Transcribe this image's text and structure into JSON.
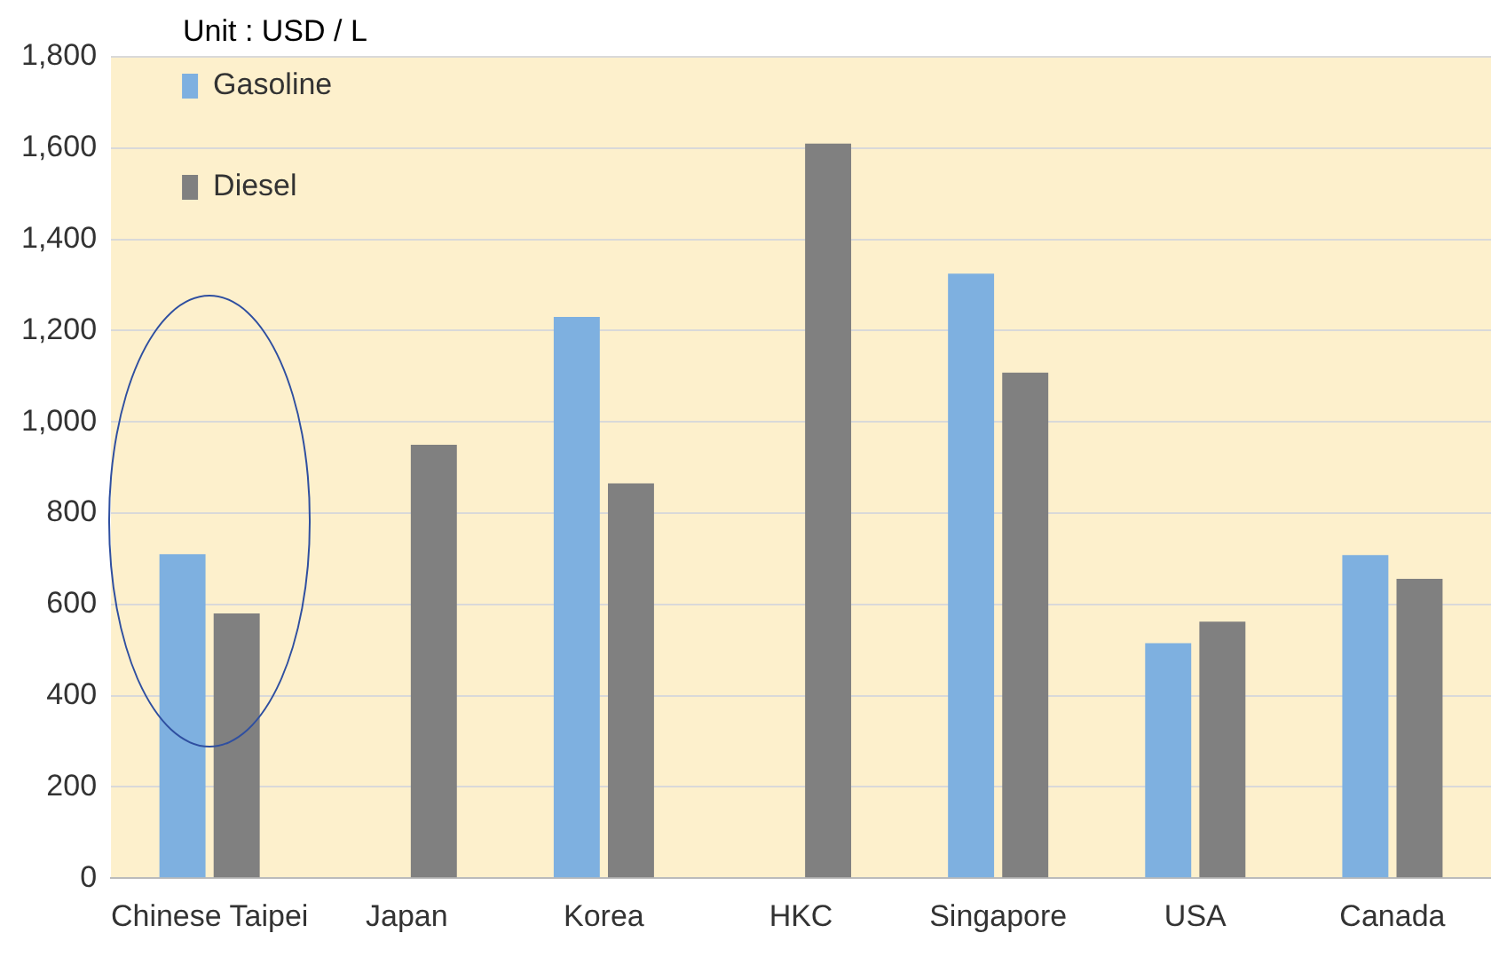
{
  "chart_data": {
    "type": "bar",
    "categories": [
      "Chinese Taipei",
      "Japan",
      "Korea",
      "HKC",
      "Singapore",
      "USA",
      "Canada"
    ],
    "series": [
      {
        "name": "Gasoline",
        "color": "#7eb0e0",
        "values": [
          710,
          null,
          1230,
          null,
          1325,
          515,
          708
        ]
      },
      {
        "name": "Diesel",
        "color": "#808080",
        "values": [
          580,
          950,
          865,
          1610,
          1108,
          562,
          656
        ]
      }
    ],
    "ylim": [
      0,
      1800
    ],
    "yticks": [
      {
        "value": 0,
        "label": "0"
      },
      {
        "value": 200,
        "label": "200"
      },
      {
        "value": 400,
        "label": "400"
      },
      {
        "value": 600,
        "label": "600"
      },
      {
        "value": 800,
        "label": "800"
      },
      {
        "value": 1000,
        "label": "1,000"
      },
      {
        "value": 1200,
        "label": "1,200"
      },
      {
        "value": 1400,
        "label": "1,400"
      },
      {
        "value": 1600,
        "label": "1,600"
      },
      {
        "value": 1800,
        "label": "1,800"
      }
    ],
    "grid": "y",
    "legend": "top left",
    "annotations": [
      "Unit : USD / L"
    ]
  }
}
